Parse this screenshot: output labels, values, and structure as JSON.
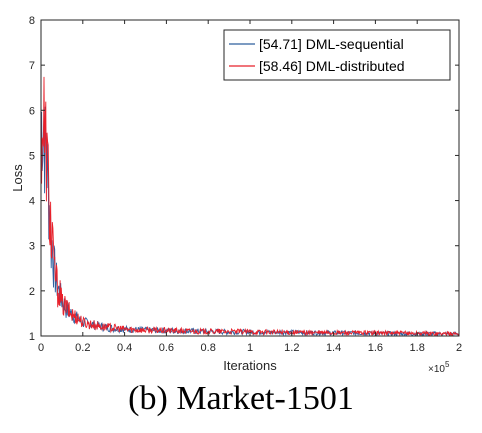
{
  "caption": "(b) Market-1501",
  "chart_data": {
    "type": "line",
    "title": "",
    "xlabel": "Iterations",
    "ylabel": "Loss",
    "x_multiplier_label": "×10",
    "x_multiplier_exponent": "5",
    "xlim": [
      0,
      2
    ],
    "ylim": [
      1,
      8
    ],
    "xticks": [
      "0",
      "0.2",
      "0.4",
      "0.6",
      "0.8",
      "1",
      "1.2",
      "1.4",
      "1.6",
      "1.8",
      "2"
    ],
    "yticks": [
      "1",
      "2",
      "3",
      "4",
      "5",
      "6",
      "7",
      "8"
    ],
    "grid": false,
    "legend_position": "top-right",
    "series": [
      {
        "name": "[54.71] DML-sequential",
        "color": "#2f5f9e",
        "x": [
          0,
          0.005,
          0.01,
          0.015,
          0.02,
          0.025,
          0.03,
          0.035,
          0.04,
          0.045,
          0.05,
          0.055,
          0.06,
          0.07,
          0.08,
          0.09,
          0.1,
          0.12,
          0.14,
          0.16,
          0.18,
          0.2,
          0.25,
          0.3,
          0.35,
          0.4,
          0.5,
          0.6,
          0.7,
          0.8,
          0.9,
          1.0,
          1.2,
          1.4,
          1.6,
          1.8,
          2.0
        ],
        "values": [
          5.3,
          6.1,
          5.6,
          5.9,
          5.0,
          5.3,
          4.7,
          4.2,
          3.9,
          3.5,
          2.8,
          3.2,
          2.6,
          2.3,
          2.1,
          1.9,
          1.8,
          1.6,
          1.5,
          1.45,
          1.35,
          1.3,
          1.25,
          1.2,
          1.17,
          1.15,
          1.13,
          1.12,
          1.11,
          1.1,
          1.09,
          1.09,
          1.08,
          1.07,
          1.06,
          1.05,
          1.05
        ]
      },
      {
        "name": "[58.46] DML-distributed",
        "color": "#e8202a",
        "x": [
          0,
          0.005,
          0.01,
          0.015,
          0.02,
          0.025,
          0.03,
          0.035,
          0.04,
          0.045,
          0.05,
          0.055,
          0.06,
          0.07,
          0.08,
          0.09,
          0.1,
          0.12,
          0.14,
          0.16,
          0.18,
          0.2,
          0.25,
          0.3,
          0.35,
          0.4,
          0.5,
          0.6,
          0.7,
          0.8,
          0.9,
          1.0,
          1.2,
          1.4,
          1.6,
          1.8,
          2.0
        ],
        "values": [
          5.6,
          6.1,
          5.4,
          5.8,
          4.9,
          5.5,
          4.6,
          4.4,
          3.8,
          3.7,
          2.7,
          3.4,
          2.5,
          2.4,
          2.0,
          2.0,
          1.7,
          1.65,
          1.5,
          1.45,
          1.4,
          1.3,
          1.25,
          1.2,
          1.18,
          1.15,
          1.13,
          1.12,
          1.11,
          1.1,
          1.1,
          1.09,
          1.08,
          1.07,
          1.07,
          1.06,
          1.05
        ]
      }
    ]
  }
}
